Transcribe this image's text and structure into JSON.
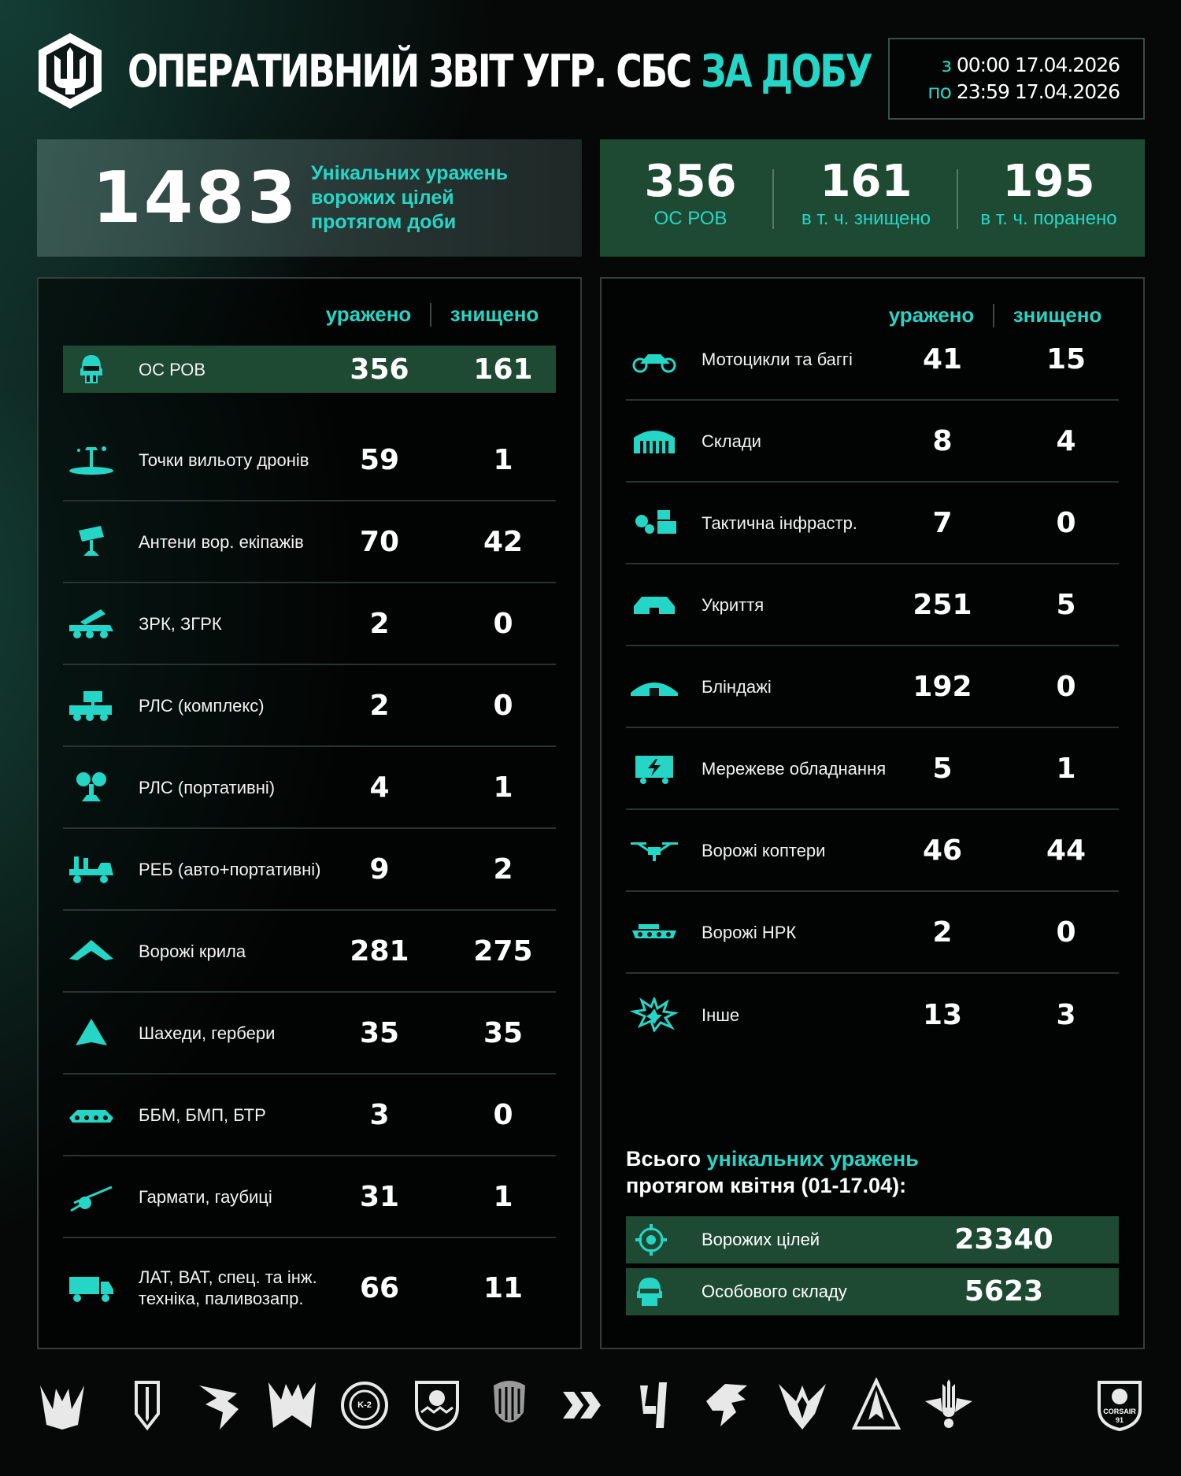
{
  "header": {
    "title_main": "ОПЕРАТИВНИЙ ЗВІТ УГР. СБС ",
    "title_accent": "ЗА ДОБУ",
    "from_label": "з",
    "from_time": "00:00",
    "from_date": "17.04.2026",
    "to_label": "по",
    "to_time": "23:59",
    "to_date": "17.04.2026"
  },
  "summary": {
    "unique_hits": "1483",
    "unique_hits_caption": "Унікальних уражень ворожих цілей протягом доби",
    "stats": [
      {
        "value": "356",
        "label": "ОС РОВ"
      },
      {
        "value": "161",
        "label": "в т. ч. знищено"
      },
      {
        "value": "195",
        "label": "в т. ч. поранено"
      }
    ]
  },
  "columns": {
    "hit": "уражено",
    "destroyed": "знищено"
  },
  "left_table": [
    {
      "icon": "soldier-icon",
      "label": "ОС РОВ",
      "hit": "356",
      "destroyed": "161"
    },
    {
      "icon": "drone-launch-point-icon",
      "label": "Точки вильоту дронів",
      "hit": "59",
      "destroyed": "1"
    },
    {
      "icon": "antenna-icon",
      "label": "Антени вор. екіпажів",
      "hit": "70",
      "destroyed": "42"
    },
    {
      "icon": "sam-vehicle-icon",
      "label": "ЗРК, ЗГРК",
      "hit": "2",
      "destroyed": "0"
    },
    {
      "icon": "radar-vehicle-icon",
      "label": "РЛС (комплекс)",
      "hit": "2",
      "destroyed": "0"
    },
    {
      "icon": "portable-radar-icon",
      "label": "РЛС (портативні)",
      "hit": "4",
      "destroyed": "1"
    },
    {
      "icon": "ew-vehicle-icon",
      "label": "РЕБ (авто+портативні)",
      "hit": "9",
      "destroyed": "2"
    },
    {
      "icon": "wing-drone-icon",
      "label": "Ворожі крила",
      "hit": "281",
      "destroyed": "275"
    },
    {
      "icon": "shahed-icon",
      "label": "Шахеди, гербери",
      "hit": "35",
      "destroyed": "35"
    },
    {
      "icon": "apc-icon",
      "label": "ББМ, БМП, БТР",
      "hit": "3",
      "destroyed": "0"
    },
    {
      "icon": "howitzer-icon",
      "label": "Гармати, гаубиці",
      "hit": "31",
      "destroyed": "1"
    },
    {
      "icon": "truck-icon",
      "label": "ЛАТ, ВАТ, спец. та інж. техніка, паливозапр.",
      "hit": "66",
      "destroyed": "11"
    }
  ],
  "right_table": [
    {
      "icon": "motorcycle-icon",
      "label": "Мотоцикли та баггі",
      "hit": "41",
      "destroyed": "15"
    },
    {
      "icon": "warehouse-icon",
      "label": "Склади",
      "hit": "8",
      "destroyed": "4"
    },
    {
      "icon": "infrastructure-icon",
      "label": "Тактична інфрастр.",
      "hit": "7",
      "destroyed": "0"
    },
    {
      "icon": "shelter-icon",
      "label": "Укриття",
      "hit": "251",
      "destroyed": "5"
    },
    {
      "icon": "dugout-icon",
      "label": "Бліндажі",
      "hit": "192",
      "destroyed": "0"
    },
    {
      "icon": "network-equipment-icon",
      "label": "Мережеве обладнання",
      "hit": "5",
      "destroyed": "1"
    },
    {
      "icon": "copter-icon",
      "label": "Ворожі коптери",
      "hit": "46",
      "destroyed": "44"
    },
    {
      "icon": "ugv-icon",
      "label": "Ворожі НРК",
      "hit": "2",
      "destroyed": "0"
    },
    {
      "icon": "explosion-icon",
      "label": "Інше",
      "hit": "13",
      "destroyed": "3"
    }
  ],
  "totals": {
    "title_prefix": "Всього ",
    "title_accent": "унікальних уражень",
    "title_suffix": "протягом квітня (01-17.04):",
    "rows": [
      {
        "icon": "target-icon",
        "label": "Ворожих цілей",
        "value": "23340"
      },
      {
        "icon": "soldier-icon",
        "label": "Особового складу",
        "value": "5623"
      }
    ]
  },
  "footer": {
    "emblem_text_1": "K-2",
    "emblem_text_2": "CORSAIR",
    "emblem_text_3": "91"
  },
  "colors": {
    "accent": "#25d6c7",
    "green_panel": "#1e4a33",
    "background": "#050807"
  }
}
